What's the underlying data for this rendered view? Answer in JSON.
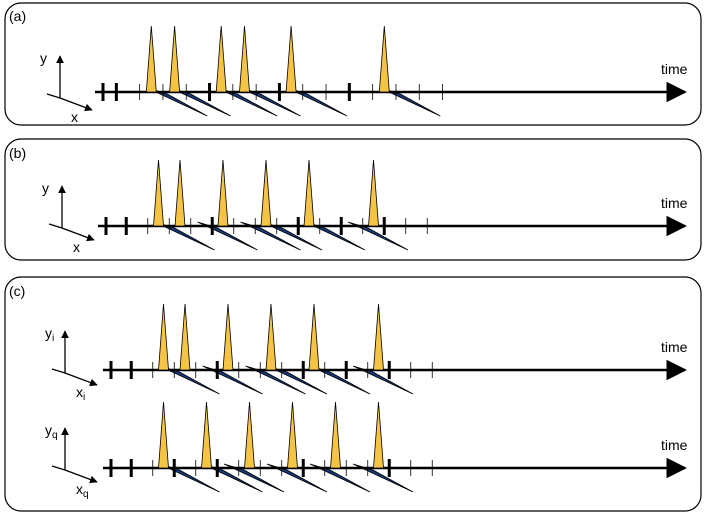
{
  "colors": {
    "spike": "#f6c444",
    "wedge": "#17397a",
    "axis": "#000000",
    "panel_border": "#000000"
  },
  "panels": [
    {
      "id": "a",
      "label": "(a)",
      "rows": [
        {
          "ylabel": "y",
          "ysub": "",
          "xlabel": "x",
          "xsub": "",
          "time_label": "time",
          "spikes": [
            1,
            2,
            4,
            5,
            7,
            11
          ],
          "wedges": [
            1,
            2,
            4,
            5,
            7,
            11
          ],
          "major_ticks": [
            0,
            4,
            7,
            10
          ]
        }
      ]
    },
    {
      "id": "b",
      "label": "(b)",
      "rows": [
        {
          "ylabel": "y",
          "ysub": "",
          "xlabel": "x",
          "xsub": "",
          "time_label": "time",
          "spikes": [
            1,
            2,
            4,
            6,
            8,
            11
          ],
          "wedges": [
            1,
            3,
            5,
            6,
            8,
            10
          ],
          "major_ticks": [
            0,
            4,
            8,
            10,
            12
          ]
        }
      ]
    },
    {
      "id": "c",
      "label": "(c)",
      "rows": [
        {
          "ylabel": "y",
          "ysub": "i",
          "xlabel": "x",
          "xsub": "i",
          "time_label": "time",
          "spikes": [
            1,
            2,
            4,
            6,
            8,
            11
          ],
          "wedges": [
            1,
            3,
            5,
            6,
            8,
            10
          ],
          "major_ticks": [
            0,
            4,
            8,
            10,
            12
          ]
        },
        {
          "ylabel": "y",
          "ysub": "q",
          "xlabel": "x",
          "xsub": "q",
          "time_label": "time",
          "spikes": [
            1,
            3,
            5,
            7,
            9,
            11
          ],
          "wedges": [
            1,
            3,
            4,
            6,
            8,
            10
          ],
          "major_ticks": [
            0,
            2,
            4,
            8,
            12
          ]
        }
      ]
    }
  ]
}
